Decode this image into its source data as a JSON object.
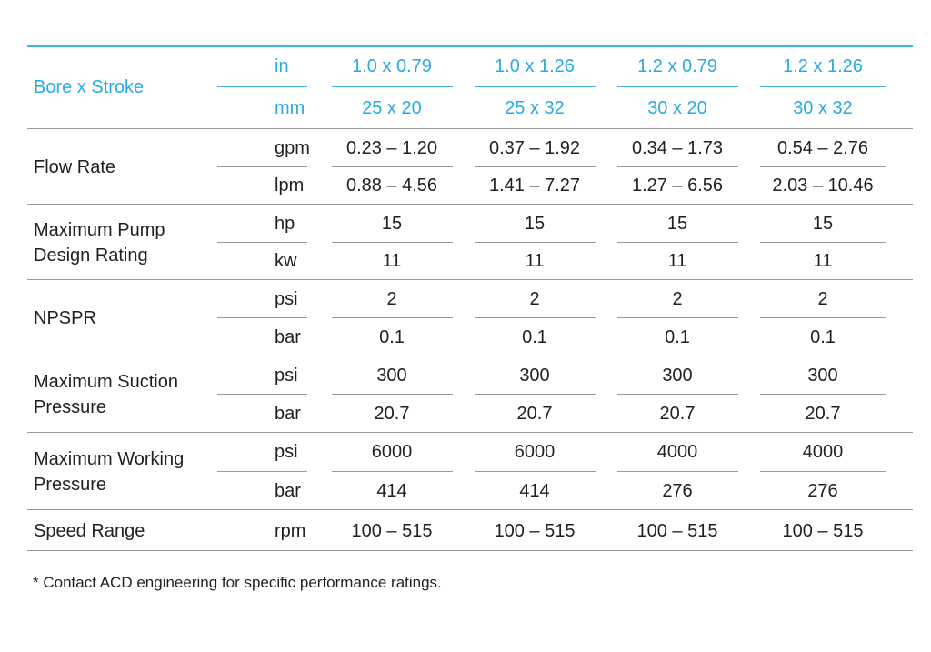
{
  "columns": [
    "1.0 x 0.79",
    "1.0 x 1.26",
    "1.2 x 0.79",
    "1.2 x 1.26"
  ],
  "groups": [
    {
      "label": "Bore x Stroke",
      "rows": [
        {
          "unit": "in",
          "values": [
            "1.0 x 0.79",
            "1.0 x 1.26",
            "1.2 x 0.79",
            "1.2 x 1.26"
          ]
        },
        {
          "unit": "mm",
          "values": [
            "25 x 20",
            "25 x 32",
            "30 x 20",
            "30 x 32"
          ]
        }
      ]
    },
    {
      "label": "Flow Rate",
      "rows": [
        {
          "unit": "gpm",
          "values": [
            "0.23 – 1.20",
            "0.37 – 1.92",
            "0.34 – 1.73",
            "0.54 – 2.76"
          ]
        },
        {
          "unit": "lpm",
          "values": [
            "0.88 – 4.56",
            "1.41 – 7.27",
            "1.27 – 6.56",
            "2.03 – 10.46"
          ]
        }
      ]
    },
    {
      "label": "Maximum Pump\nDesign Rating",
      "rows": [
        {
          "unit": "hp",
          "values": [
            "15",
            "15",
            "15",
            "15"
          ]
        },
        {
          "unit": "kw",
          "values": [
            "11",
            "11",
            "11",
            "11"
          ]
        }
      ]
    },
    {
      "label": "NPSPR",
      "rows": [
        {
          "unit": "psi",
          "values": [
            "2",
            "2",
            "2",
            "2"
          ]
        },
        {
          "unit": "bar",
          "values": [
            "0.1",
            "0.1",
            "0.1",
            "0.1"
          ]
        }
      ]
    },
    {
      "label": "Maximum Suction\nPressure",
      "rows": [
        {
          "unit": "psi",
          "values": [
            "300",
            "300",
            "300",
            "300"
          ]
        },
        {
          "unit": "bar",
          "values": [
            "20.7",
            "20.7",
            "20.7",
            "20.7"
          ]
        }
      ]
    },
    {
      "label": "Maximum Working\nPressure",
      "rows": [
        {
          "unit": "psi",
          "values": [
            "6000",
            "6000",
            "4000",
            "4000"
          ]
        },
        {
          "unit": "bar",
          "values": [
            "414",
            "414",
            "276",
            "276"
          ]
        }
      ]
    },
    {
      "label": "Speed Range",
      "rows": [
        {
          "unit": "rpm",
          "values": [
            "100 – 515",
            "100 – 515",
            "100 – 515",
            "100 – 515"
          ]
        }
      ]
    }
  ],
  "footnote": "* Contact ACD engineering for specific performance ratings.",
  "colors": {
    "accent": "#29abe2",
    "rule": "#9a9a9a",
    "text": "#231f20"
  }
}
